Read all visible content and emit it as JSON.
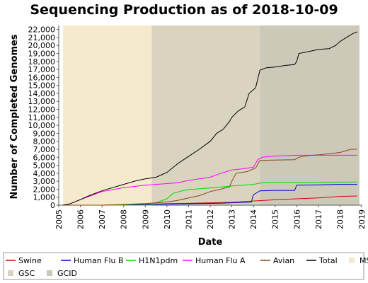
{
  "chart_data": {
    "type": "line",
    "title": "Sequencing Production as of 2018-10-09",
    "xlabel": "Date",
    "ylabel": "Number of Completed Genomes",
    "xlim": [
      2005,
      2019
    ],
    "ylim": [
      0,
      22500
    ],
    "x_ticks": [
      "2005",
      "2006",
      "2007",
      "2008",
      "2009",
      "2010",
      "2011",
      "2012",
      "2013",
      "2014",
      "2015",
      "2016",
      "2017",
      "2018",
      "2019"
    ],
    "y_ticks": [
      "0",
      "1,000",
      "2,000",
      "3,000",
      "4,000",
      "5,000",
      "6,000",
      "7,000",
      "8,000",
      "9,000",
      "10,000",
      "11,000",
      "12,000",
      "13,000",
      "14,000",
      "15,000",
      "16,000",
      "17,000",
      "18,000",
      "19,000",
      "20,000",
      "21,000",
      "22,000"
    ],
    "grid": false,
    "legend_position": "bottom",
    "bands": [
      {
        "name": "MSC",
        "start": 2005.2,
        "end": 2009.3,
        "color": "#f5ebcc"
      },
      {
        "name": "GSC",
        "start": 2009.3,
        "end": 2014.3,
        "color": "#d9d3c0"
      },
      {
        "name": "GCID",
        "start": 2014.3,
        "end": 2018.9,
        "color": "#cdc9b8"
      }
    ],
    "series": [
      {
        "name": "Swine",
        "color": "#e00000",
        "points": [
          [
            2005.2,
            0
          ],
          [
            2007,
            0
          ],
          [
            2009,
            120
          ],
          [
            2013,
            350
          ],
          [
            2014.2,
            550
          ],
          [
            2015,
            680
          ],
          [
            2016,
            800
          ],
          [
            2017,
            900
          ],
          [
            2018,
            1100
          ],
          [
            2018.8,
            1150
          ]
        ]
      },
      {
        "name": "Human Flu B",
        "color": "#0000dd",
        "points": [
          [
            2005.2,
            0
          ],
          [
            2007.5,
            0
          ],
          [
            2009,
            100
          ],
          [
            2012.5,
            250
          ],
          [
            2013.5,
            350
          ],
          [
            2013.9,
            380
          ],
          [
            2014,
            1300
          ],
          [
            2014.3,
            1800
          ],
          [
            2015,
            1850
          ],
          [
            2015.9,
            1850
          ],
          [
            2016,
            2500
          ],
          [
            2017,
            2550
          ],
          [
            2018,
            2600
          ],
          [
            2018.8,
            2600
          ]
        ]
      },
      {
        "name": "H1N1pdm",
        "color": "#00dd00",
        "points": [
          [
            2005.2,
            0
          ],
          [
            2009.3,
            0
          ],
          [
            2009.5,
            300
          ],
          [
            2010,
            800
          ],
          [
            2010.3,
            1500
          ],
          [
            2010.7,
            1800
          ],
          [
            2011,
            1950
          ],
          [
            2011.5,
            2050
          ],
          [
            2012,
            2150
          ],
          [
            2013,
            2400
          ],
          [
            2013.5,
            2500
          ],
          [
            2014,
            2600
          ],
          [
            2014.4,
            2800
          ],
          [
            2015,
            2850
          ],
          [
            2018.8,
            2900
          ]
        ]
      },
      {
        "name": "Human Flu A",
        "color": "#ff00ff",
        "points": [
          [
            2005.2,
            0
          ],
          [
            2005.5,
            150
          ],
          [
            2006,
            700
          ],
          [
            2006.5,
            1200
          ],
          [
            2007,
            1700
          ],
          [
            2008,
            2200
          ],
          [
            2009,
            2500
          ],
          [
            2010,
            2700
          ],
          [
            2010.5,
            2800
          ],
          [
            2011,
            3100
          ],
          [
            2011.5,
            3300
          ],
          [
            2012,
            3500
          ],
          [
            2012.5,
            4000
          ],
          [
            2013,
            4400
          ],
          [
            2013.5,
            4550
          ],
          [
            2014,
            4750
          ],
          [
            2014.2,
            5700
          ],
          [
            2014.4,
            6000
          ],
          [
            2015,
            6150
          ],
          [
            2016,
            6250
          ],
          [
            2018.8,
            6250
          ]
        ]
      },
      {
        "name": "Avian",
        "color": "#8b4513",
        "points": [
          [
            2005.2,
            0
          ],
          [
            2007,
            0
          ],
          [
            2008,
            100
          ],
          [
            2009,
            200
          ],
          [
            2010,
            400
          ],
          [
            2010.5,
            600
          ],
          [
            2011,
            900
          ],
          [
            2011.5,
            1200
          ],
          [
            2012,
            1700
          ],
          [
            2012.5,
            2000
          ],
          [
            2012.9,
            2300
          ],
          [
            2013,
            3000
          ],
          [
            2013.2,
            4000
          ],
          [
            2013.7,
            4200
          ],
          [
            2014.1,
            4650
          ],
          [
            2014.3,
            5600
          ],
          [
            2015,
            5650
          ],
          [
            2015.9,
            5700
          ],
          [
            2016.1,
            6000
          ],
          [
            2016.5,
            6200
          ],
          [
            2017,
            6300
          ],
          [
            2018,
            6600
          ],
          [
            2018.5,
            7000
          ],
          [
            2018.8,
            7000
          ]
        ]
      },
      {
        "name": "Total",
        "color": "#000000",
        "points": [
          [
            2005.2,
            0
          ],
          [
            2005.5,
            150
          ],
          [
            2006,
            700
          ],
          [
            2006.5,
            1300
          ],
          [
            2007,
            1800
          ],
          [
            2008,
            2600
          ],
          [
            2008.5,
            3000
          ],
          [
            2009,
            3300
          ],
          [
            2009.5,
            3500
          ],
          [
            2010,
            4100
          ],
          [
            2010.5,
            5200
          ],
          [
            2011,
            6100
          ],
          [
            2011.5,
            7000
          ],
          [
            2012,
            8000
          ],
          [
            2012.3,
            9000
          ],
          [
            2012.6,
            9500
          ],
          [
            2012.9,
            10500
          ],
          [
            2013,
            11000
          ],
          [
            2013.3,
            11800
          ],
          [
            2013.6,
            12300
          ],
          [
            2013.8,
            14000
          ],
          [
            2014.1,
            14700
          ],
          [
            2014.3,
            16900
          ],
          [
            2014.6,
            17200
          ],
          [
            2015,
            17300
          ],
          [
            2015.5,
            17500
          ],
          [
            2015.9,
            17600
          ],
          [
            2016,
            18000
          ],
          [
            2016.1,
            19000
          ],
          [
            2016.5,
            19200
          ],
          [
            2017,
            19500
          ],
          [
            2017.5,
            19600
          ],
          [
            2017.8,
            20000
          ],
          [
            2018,
            20500
          ],
          [
            2018.3,
            21000
          ],
          [
            2018.6,
            21500
          ],
          [
            2018.8,
            21700
          ]
        ]
      }
    ],
    "legend_items": [
      {
        "name": "Swine",
        "kind": "line",
        "color": "#e00000"
      },
      {
        "name": "Human Flu B",
        "kind": "line",
        "color": "#0000dd"
      },
      {
        "name": "H1N1pdm",
        "kind": "line",
        "color": "#00dd00"
      },
      {
        "name": "Human Flu A",
        "kind": "line",
        "color": "#ff00ff"
      },
      {
        "name": "Avian",
        "kind": "line",
        "color": "#8b4513"
      },
      {
        "name": "Total",
        "kind": "line",
        "color": "#000000"
      },
      {
        "name": "MSC",
        "kind": "patch",
        "color": "#f5ebcc"
      },
      {
        "name": "GSC",
        "kind": "patch",
        "color": "#d9d3c0"
      },
      {
        "name": "GCID",
        "kind": "patch",
        "color": "#cdc9b8"
      }
    ]
  }
}
